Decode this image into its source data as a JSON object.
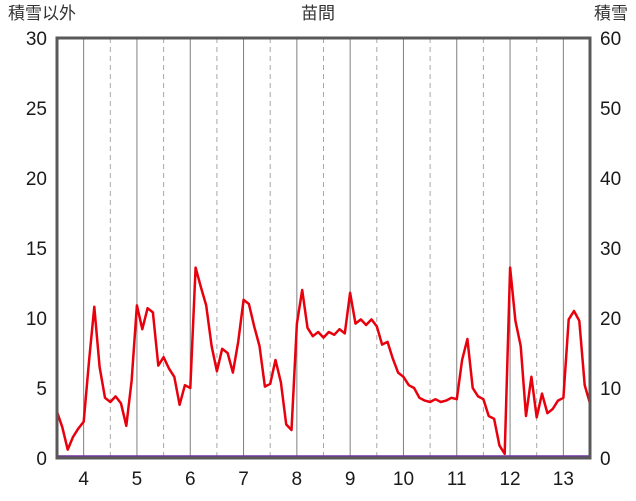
{
  "header": {
    "left_axis_title": "積雪以外",
    "title": "苗間",
    "right_axis_title": "積雪"
  },
  "chart_data": {
    "type": "line",
    "title": "苗間",
    "x_range": [
      3.5,
      13.5
    ],
    "x_ticks": [
      4,
      5,
      6,
      7,
      8,
      9,
      10,
      11,
      12,
      13
    ],
    "left_axis": {
      "label": "積雪以外",
      "range": [
        0,
        30
      ],
      "ticks": [
        0,
        5,
        10,
        15,
        20,
        25,
        30
      ]
    },
    "right_axis": {
      "label": "積雪",
      "range": [
        0,
        60
      ],
      "ticks": [
        0,
        10,
        20,
        30,
        40,
        50,
        60
      ]
    },
    "grid": {
      "solid_x": [
        4,
        5,
        6,
        7,
        8,
        9,
        10,
        11,
        12,
        13
      ],
      "dashed_x": [
        4.5,
        5.5,
        6.5,
        7.5,
        8.5,
        9.5,
        10.5,
        11.5,
        12.5
      ]
    },
    "colors": {
      "border": "#595959",
      "grid_solid": "#7f7f7f",
      "grid_dashed": "#a8a8a8",
      "series_red": "#e8000d",
      "series_purple": "#7030a0",
      "text": "#1a1a1a"
    },
    "series": [
      {
        "name": "積雪以外",
        "axis": "left",
        "color": "#e8000d",
        "width": 2.5,
        "x_start": 3.5,
        "x_step": 0.1,
        "values": [
          3.3,
          2.2,
          0.6,
          1.5,
          2.1,
          2.6,
          6.9,
          10.8,
          6.5,
          4.3,
          4.0,
          4.4,
          3.9,
          2.3,
          5.5,
          10.9,
          9.2,
          10.7,
          10.4,
          6.6,
          7.2,
          6.4,
          5.8,
          3.8,
          5.2,
          5.0,
          13.6,
          12.2,
          10.9,
          8.0,
          6.2,
          7.8,
          7.5,
          6.1,
          8.3,
          11.3,
          11.0,
          9.4,
          8.0,
          5.1,
          5.3,
          7.0,
          5.4,
          2.4,
          2.0,
          9.6,
          12.0,
          9.3,
          8.7,
          9.0,
          8.6,
          9.0,
          8.8,
          9.2,
          8.9,
          11.8,
          9.6,
          9.9,
          9.5,
          9.9,
          9.4,
          8.1,
          8.3,
          7.1,
          6.1,
          5.8,
          5.2,
          5.0,
          4.3,
          4.1,
          4.0,
          4.2,
          4.0,
          4.1,
          4.3,
          4.2,
          7.0,
          8.5,
          5.0,
          4.4,
          4.2,
          3.0,
          2.8,
          0.9,
          0.3,
          13.6,
          9.8,
          8.0,
          3.0,
          5.8,
          2.9,
          4.6,
          3.2,
          3.5,
          4.1,
          4.3,
          9.9,
          10.5,
          9.8,
          5.2,
          3.9
        ]
      },
      {
        "name": "積雪",
        "axis": "right",
        "color": "#7030a0",
        "width": 2.5,
        "x": [
          3.5,
          13.5
        ],
        "y": [
          0,
          0
        ]
      }
    ]
  }
}
